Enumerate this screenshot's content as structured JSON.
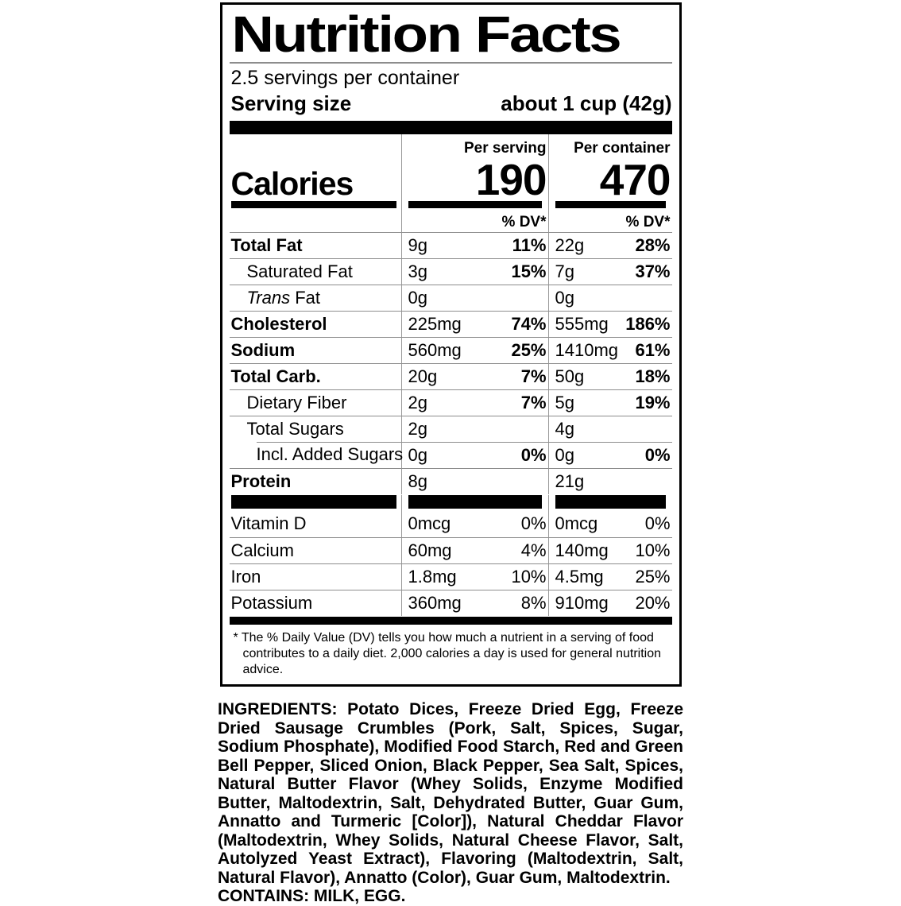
{
  "label": {
    "title": "Nutrition Facts",
    "servings_per_container": "2.5 servings per container",
    "serving_size": {
      "label": "Serving size",
      "value": "about 1 cup (42g)"
    },
    "columns": {
      "per_serving": "Per serving",
      "per_container": "Per container"
    },
    "calories": {
      "label": "Calories",
      "per_serving": "190",
      "per_container": "470"
    },
    "dv_header": "% DV*",
    "rows": [
      {
        "name": "Total Fat",
        "bold": true,
        "indent": 0,
        "per_serving": {
          "amount": "9g",
          "dv": "11%"
        },
        "per_container": {
          "amount": "22g",
          "dv": "28%"
        }
      },
      {
        "name": "Saturated Fat",
        "bold": false,
        "indent": 1,
        "per_serving": {
          "amount": "3g",
          "dv": "15%"
        },
        "per_container": {
          "amount": "7g",
          "dv": "37%"
        }
      },
      {
        "name_italic": "Trans",
        "name": " Fat",
        "bold": false,
        "indent": 1,
        "per_serving": {
          "amount": "0g",
          "dv": ""
        },
        "per_container": {
          "amount": "0g",
          "dv": ""
        }
      },
      {
        "name": "Cholesterol",
        "bold": true,
        "indent": 0,
        "per_serving": {
          "amount": "225mg",
          "dv": "74%"
        },
        "per_container": {
          "amount": "555mg",
          "dv": "186%"
        }
      },
      {
        "name": "Sodium",
        "bold": true,
        "indent": 0,
        "per_serving": {
          "amount": "560mg",
          "dv": "25%"
        },
        "per_container": {
          "amount": "1410mg",
          "dv": "61%"
        }
      },
      {
        "name": "Total Carb.",
        "bold": true,
        "indent": 0,
        "per_serving": {
          "amount": "20g",
          "dv": "7%"
        },
        "per_container": {
          "amount": "50g",
          "dv": "18%"
        }
      },
      {
        "name": "Dietary Fiber",
        "bold": false,
        "indent": 1,
        "per_serving": {
          "amount": "2g",
          "dv": "7%"
        },
        "per_container": {
          "amount": "5g",
          "dv": "19%"
        }
      },
      {
        "name": "Total Sugars",
        "bold": false,
        "indent": 1,
        "per_serving": {
          "amount": "2g",
          "dv": ""
        },
        "per_container": {
          "amount": "4g",
          "dv": ""
        }
      },
      {
        "name": "Incl. Added Sugars",
        "bold": false,
        "indent": 2,
        "sep_indent": true,
        "per_serving": {
          "amount": "0g",
          "dv": "0%"
        },
        "per_container": {
          "amount": "0g",
          "dv": "0%"
        }
      },
      {
        "name": "Protein",
        "bold": true,
        "indent": 0,
        "per_serving": {
          "amount": "8g",
          "dv": ""
        },
        "per_container": {
          "amount": "21g",
          "dv": ""
        }
      }
    ],
    "vitamins": [
      {
        "name": "Vitamin D",
        "per_serving": {
          "amount": "0mcg",
          "dv": "0%"
        },
        "per_container": {
          "amount": "0mcg",
          "dv": "0%"
        }
      },
      {
        "name": "Calcium",
        "per_serving": {
          "amount": "60mg",
          "dv": "4%"
        },
        "per_container": {
          "amount": "140mg",
          "dv": "10%"
        }
      },
      {
        "name": "Iron",
        "per_serving": {
          "amount": "1.8mg",
          "dv": "10%"
        },
        "per_container": {
          "amount": "4.5mg",
          "dv": "25%"
        }
      },
      {
        "name": "Potassium",
        "per_serving": {
          "amount": "360mg",
          "dv": "8%"
        },
        "per_container": {
          "amount": "910mg",
          "dv": "20%"
        }
      }
    ],
    "footnote": "* The % Daily Value (DV) tells you how much a nutrient in a serving of food contributes to a daily diet. 2,000 calories a day is used for general nutrition advice."
  },
  "ingredients": {
    "text": "INGREDIENTS: Potato Dices, Freeze Dried Egg, Freeze Dried Sausage Crumbles (Pork, Salt, Spices, Sugar, Sodium Phosphate), Modified Food Starch, Red and Green Bell Pepper, Sliced Onion, Black Pepper, Sea Salt, Spices, Natural Butter Flavor (Whey Solids, Enzyme Modified Butter, Maltodextrin, Salt, Dehydrated Butter, Guar Gum, Annatto and Turmeric [Color]), Natural Cheddar Flavor (Maltodextrin, Whey Solids, Natural Cheese Flavor, Salt, Autolyzed Yeast Extract), Flavoring (Maltodextrin, Salt, Natural Flavor), Annatto (Color), Guar Gum, Maltodextrin.",
    "contains": "CONTAINS: MILK, EGG."
  },
  "colors": {
    "text": "#000000",
    "hairline": "#8d8d8d",
    "divider": "#9a9a9a",
    "bar": "#000000"
  }
}
